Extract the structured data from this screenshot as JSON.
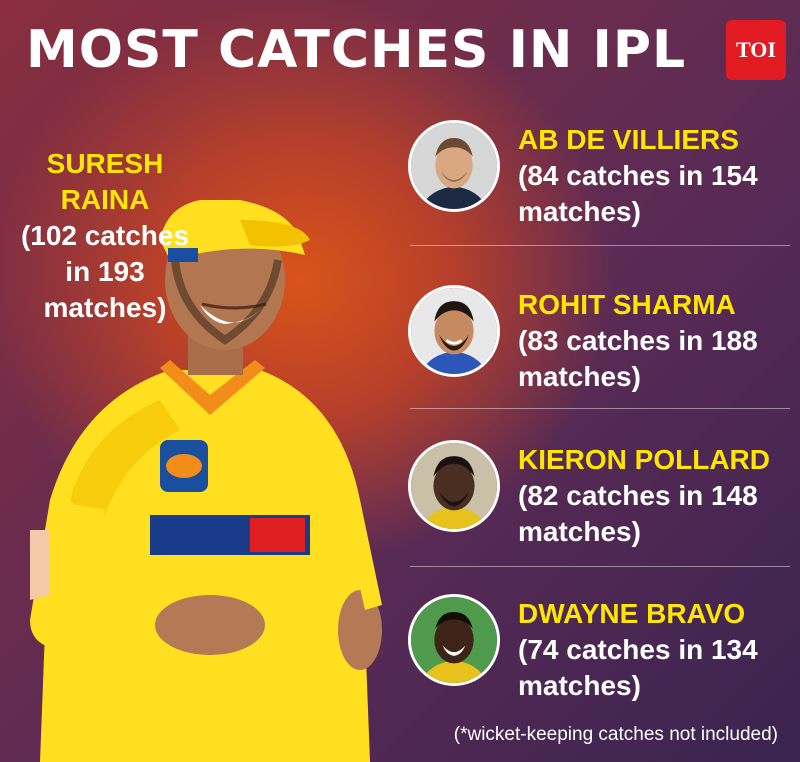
{
  "header": {
    "title": "MOST CATCHES IN IPL",
    "logo_text": "TOI",
    "logo_color": "#e21b22"
  },
  "hero": {
    "name": "SURESH RAINA",
    "stats": "(102 catches in 193 matches)",
    "jersey_color": "#ffe01a"
  },
  "players": [
    {
      "name": "AB DE VILLIERS",
      "stats": "(84 catches in 154 matches)",
      "photo": "ab-de-villiers-photo"
    },
    {
      "name": "ROHIT SHARMA",
      "stats": "(83 catches in 188 matches)",
      "photo": "rohit-sharma-photo"
    },
    {
      "name": "KIERON POLLARD",
      "stats": "(82 catches in 148 matches)",
      "photo": "kieron-pollard-photo"
    },
    {
      "name": "DWAYNE BRAVO",
      "stats": "(74 catches in 134 matches)",
      "photo": "dwayne-bravo-photo"
    }
  ],
  "footnote": "(*wicket-keeping catches not included)",
  "colors": {
    "name_highlight": "#ffe600",
    "text": "#ffffff"
  }
}
